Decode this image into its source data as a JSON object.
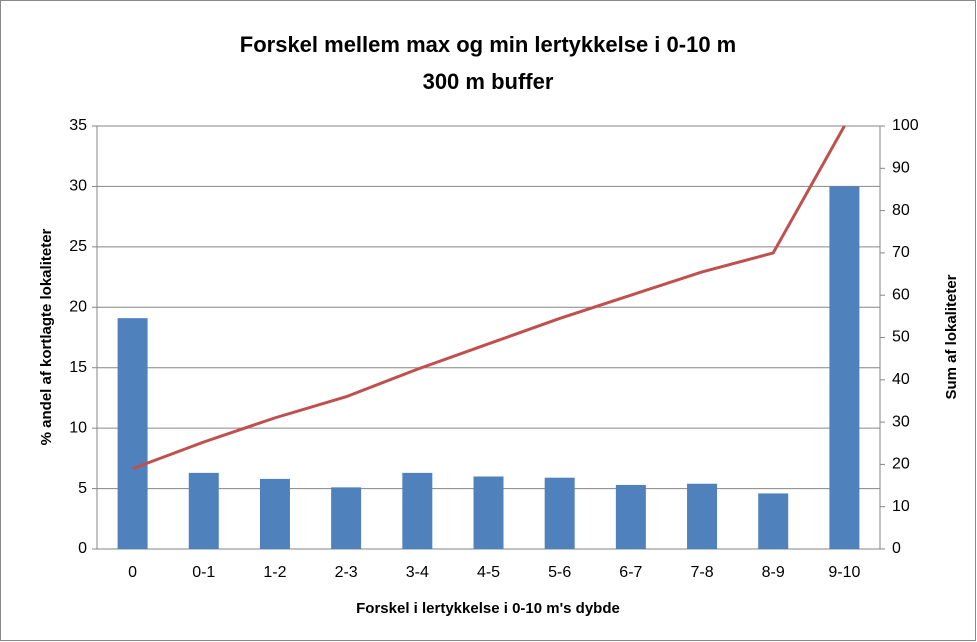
{
  "chart_data": {
    "type": "bar_line",
    "title": [
      "Forskel mellem max og min lertykkelse i 0-10 m",
      "300 m buffer"
    ],
    "x_label": "Forskel i lertykkelse i 0-10 m's dybde",
    "y_label": "% andel af kortlagte lokaliteter",
    "y2_label": "Sum af lokaliteter",
    "categories": [
      "0",
      "0-1",
      "1-2",
      "2-3",
      "3-4",
      "4-5",
      "5-6",
      "6-7",
      "7-8",
      "8-9",
      "9-10"
    ],
    "series": [
      {
        "type": "bar",
        "color": "#4f81bd",
        "values": [
          19.1,
          6.3,
          5.8,
          5.1,
          6.3,
          6.0,
          5.9,
          5.3,
          5.4,
          4.6,
          30.0
        ]
      },
      {
        "type": "line",
        "axis": "y2",
        "color": "#c0504d",
        "values": [
          19,
          25.3,
          31,
          36,
          42.5,
          48.5,
          54.5,
          60,
          65.5,
          70,
          100
        ]
      }
    ],
    "ylim": [
      0,
      35
    ],
    "yticks": [
      0,
      5,
      10,
      15,
      20,
      25,
      30,
      35
    ],
    "y2lim": [
      0,
      100
    ],
    "y2ticks": [
      0,
      10,
      20,
      30,
      40,
      50,
      60,
      70,
      80,
      90,
      100
    ],
    "grid": true
  }
}
